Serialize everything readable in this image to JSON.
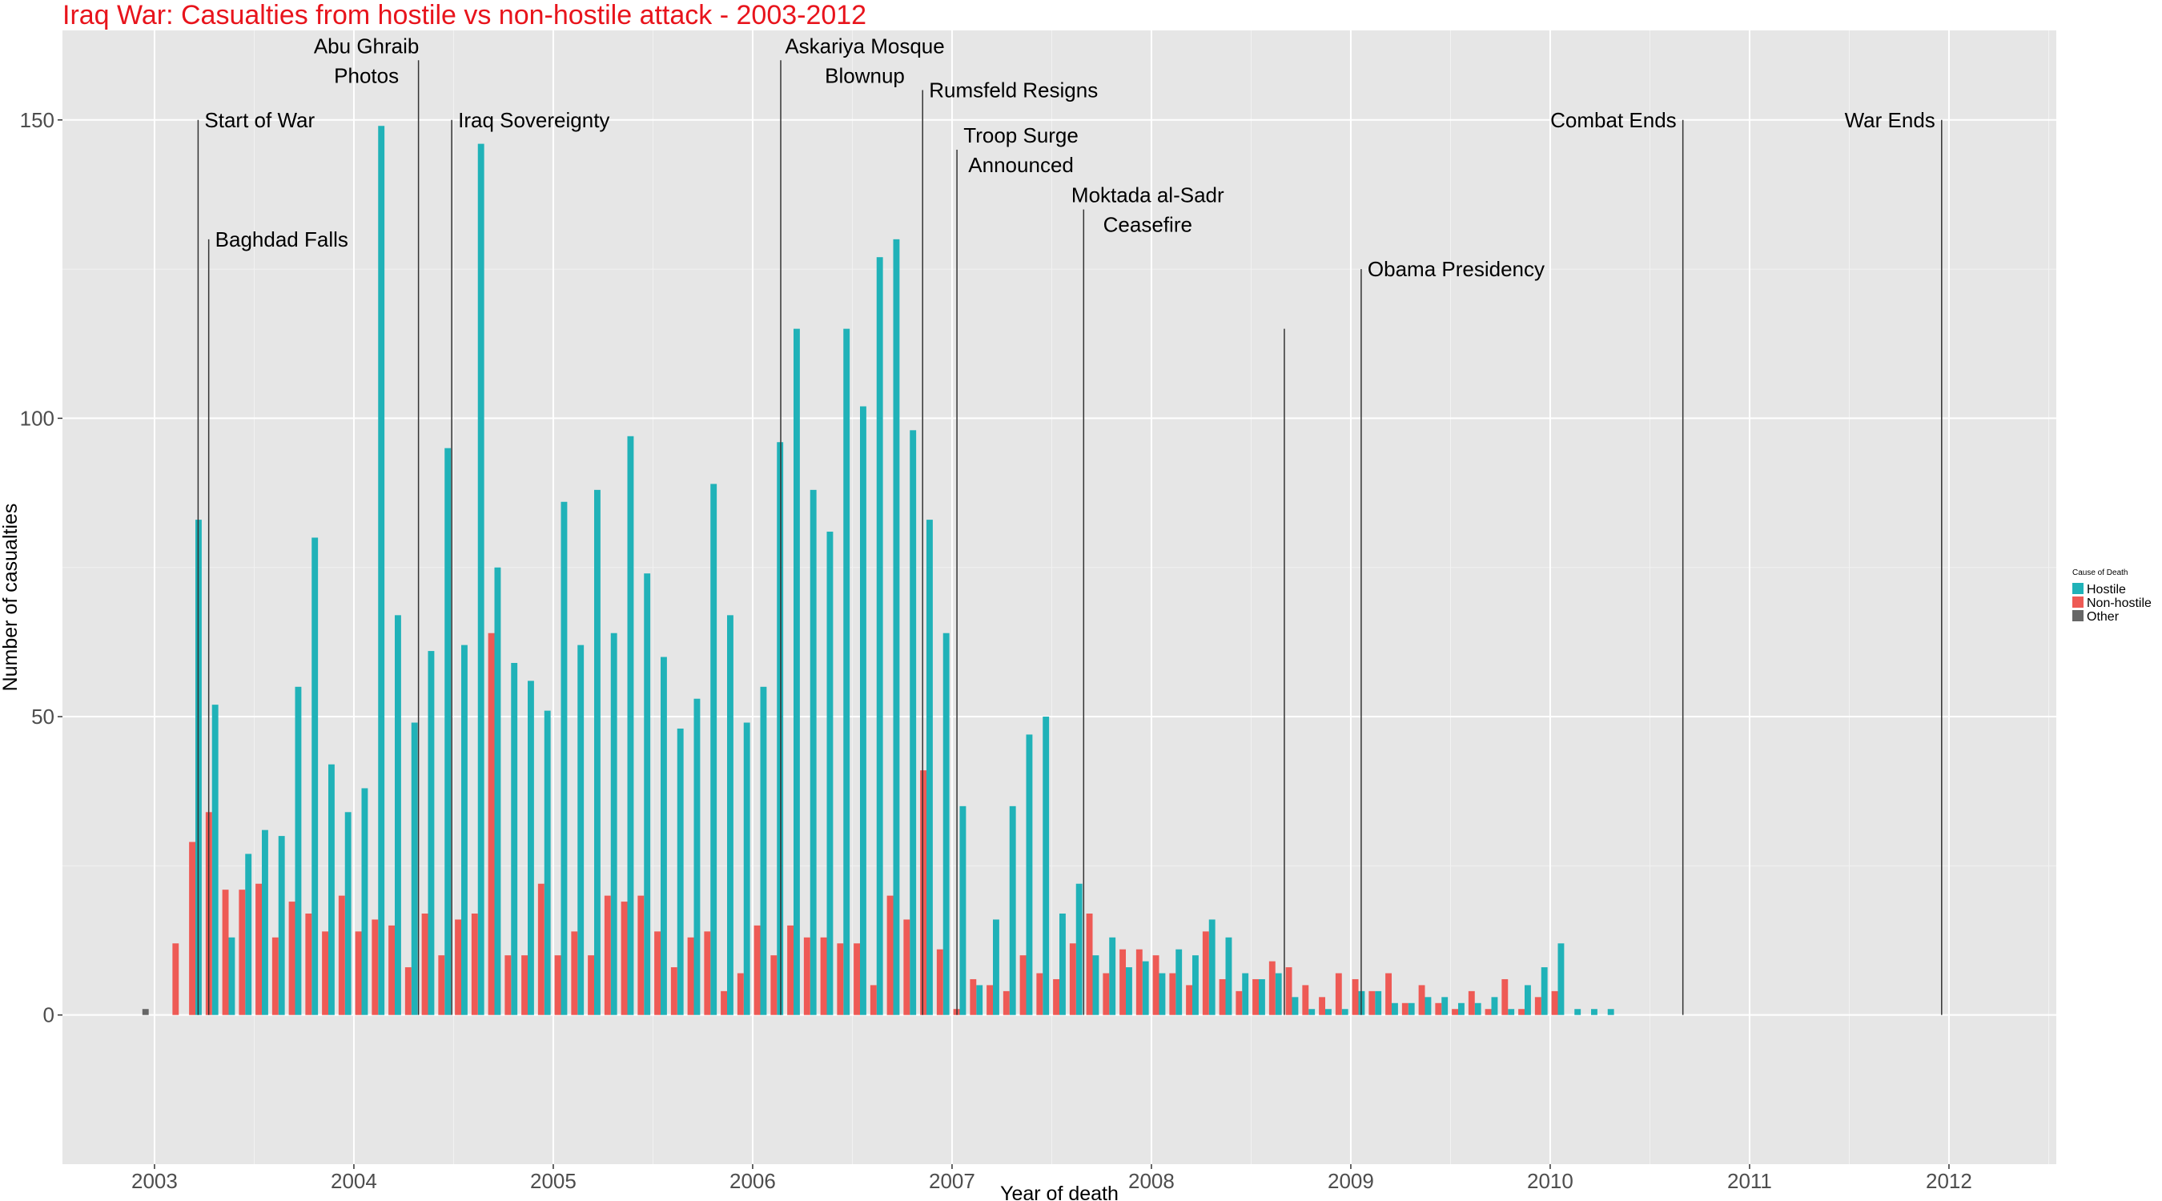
{
  "chart_data": {
    "type": "bar",
    "title": "Iraq War: Casualties from hostile vs non-hostile attack - 2003-2012",
    "xlabel": "Year of death",
    "ylabel": "Number of casualties",
    "xlim": [
      "2002-07-15",
      "2012-07-15"
    ],
    "ylim": [
      -25,
      165
    ],
    "x_ticks": [
      "2003",
      "2004",
      "2005",
      "2006",
      "2007",
      "2008",
      "2009",
      "2010",
      "2011",
      "2012"
    ],
    "y_ticks": [
      0,
      50,
      100,
      150
    ],
    "grid": true,
    "legend": {
      "title": "Cause of Death",
      "position": "right"
    },
    "series": [
      {
        "name": "Hostile",
        "color": "#20b2b8",
        "points": [
          [
            "2003-03",
            83
          ],
          [
            "2003-04",
            52
          ],
          [
            "2003-05",
            13
          ],
          [
            "2003-06",
            27
          ],
          [
            "2003-07",
            31
          ],
          [
            "2003-08",
            30
          ],
          [
            "2003-09",
            55
          ],
          [
            "2003-10",
            80
          ],
          [
            "2003-11",
            42
          ],
          [
            "2003-12",
            34
          ],
          [
            "2004-01",
            38
          ],
          [
            "2004-02",
            149
          ],
          [
            "2004-03",
            67
          ],
          [
            "2004-04",
            49
          ],
          [
            "2004-05",
            61
          ],
          [
            "2004-06",
            95
          ],
          [
            "2004-07",
            62
          ],
          [
            "2004-08",
            146
          ],
          [
            "2004-09",
            75
          ],
          [
            "2004-10",
            59
          ],
          [
            "2004-11",
            56
          ],
          [
            "2004-12",
            51
          ],
          [
            "2005-01",
            86
          ],
          [
            "2005-02",
            62
          ],
          [
            "2005-03",
            88
          ],
          [
            "2005-04",
            64
          ],
          [
            "2005-05",
            97
          ],
          [
            "2005-06",
            74
          ],
          [
            "2005-07",
            60
          ],
          [
            "2005-08",
            48
          ],
          [
            "2005-09",
            53
          ],
          [
            "2005-10",
            89
          ],
          [
            "2005-11",
            67
          ],
          [
            "2005-12",
            49
          ],
          [
            "2006-01",
            55
          ],
          [
            "2006-02",
            96
          ],
          [
            "2006-03",
            115
          ],
          [
            "2006-04",
            88
          ],
          [
            "2006-05",
            81
          ],
          [
            "2006-06",
            115
          ],
          [
            "2006-07",
            102
          ],
          [
            "2006-08",
            127
          ],
          [
            "2006-09",
            130
          ],
          [
            "2006-10",
            98
          ],
          [
            "2006-11",
            83
          ],
          [
            "2006-12",
            64
          ],
          [
            "2007-01",
            35
          ],
          [
            "2007-02",
            5
          ],
          [
            "2007-03",
            16
          ],
          [
            "2007-04",
            35
          ],
          [
            "2007-05",
            47
          ],
          [
            "2007-06",
            50
          ],
          [
            "2007-07",
            17
          ],
          [
            "2007-08",
            22
          ],
          [
            "2007-09",
            10
          ],
          [
            "2007-10",
            13
          ],
          [
            "2007-11",
            8
          ],
          [
            "2007-12",
            9
          ],
          [
            "2008-01",
            7
          ],
          [
            "2008-02",
            11
          ],
          [
            "2008-03",
            10
          ],
          [
            "2008-04",
            16
          ],
          [
            "2008-05",
            13
          ],
          [
            "2008-06",
            7
          ],
          [
            "2008-07",
            6
          ],
          [
            "2008-08",
            7
          ],
          [
            "2008-09",
            3
          ],
          [
            "2008-10",
            1
          ],
          [
            "2008-11",
            1
          ],
          [
            "2008-12",
            1
          ],
          [
            "2009-01",
            4
          ],
          [
            "2009-02",
            4
          ],
          [
            "2009-03",
            2
          ],
          [
            "2009-04",
            2
          ],
          [
            "2009-05",
            3
          ],
          [
            "2009-06",
            3
          ],
          [
            "2009-07",
            2
          ],
          [
            "2009-08",
            2
          ],
          [
            "2009-09",
            3
          ],
          [
            "2009-10",
            1
          ],
          [
            "2009-11",
            5
          ],
          [
            "2009-12",
            8
          ],
          [
            "2010-01",
            12
          ],
          [
            "2010-02",
            1
          ],
          [
            "2010-03",
            1
          ],
          [
            "2010-04",
            1
          ]
        ]
      },
      {
        "name": "Non-hostile",
        "color": "#ee5a55",
        "points": [
          [
            "2003-02",
            12
          ],
          [
            "2003-03",
            29
          ],
          [
            "2003-04",
            34
          ],
          [
            "2003-05",
            21
          ],
          [
            "2003-06",
            21
          ],
          [
            "2003-07",
            22
          ],
          [
            "2003-08",
            13
          ],
          [
            "2003-09",
            19
          ],
          [
            "2003-10",
            17
          ],
          [
            "2003-11",
            14
          ],
          [
            "2003-12",
            20
          ],
          [
            "2004-01",
            14
          ],
          [
            "2004-02",
            16
          ],
          [
            "2004-03",
            15
          ],
          [
            "2004-04",
            8
          ],
          [
            "2004-05",
            17
          ],
          [
            "2004-06",
            10
          ],
          [
            "2004-07",
            16
          ],
          [
            "2004-08",
            17
          ],
          [
            "2004-09",
            64
          ],
          [
            "2004-10",
            10
          ],
          [
            "2004-11",
            10
          ],
          [
            "2004-12",
            22
          ],
          [
            "2005-01",
            10
          ],
          [
            "2005-02",
            14
          ],
          [
            "2005-03",
            10
          ],
          [
            "2005-04",
            20
          ],
          [
            "2005-05",
            19
          ],
          [
            "2005-06",
            20
          ],
          [
            "2005-07",
            14
          ],
          [
            "2005-08",
            8
          ],
          [
            "2005-09",
            13
          ],
          [
            "2005-10",
            14
          ],
          [
            "2005-11",
            4
          ],
          [
            "2005-12",
            7
          ],
          [
            "2006-01",
            15
          ],
          [
            "2006-02",
            10
          ],
          [
            "2006-03",
            15
          ],
          [
            "2006-04",
            13
          ],
          [
            "2006-05",
            13
          ],
          [
            "2006-06",
            12
          ],
          [
            "2006-07",
            12
          ],
          [
            "2006-08",
            5
          ],
          [
            "2006-09",
            20
          ],
          [
            "2006-10",
            16
          ],
          [
            "2006-11",
            41
          ],
          [
            "2006-12",
            11
          ],
          [
            "2007-01",
            1
          ],
          [
            "2007-02",
            6
          ],
          [
            "2007-03",
            5
          ],
          [
            "2007-04",
            4
          ],
          [
            "2007-05",
            10
          ],
          [
            "2007-06",
            7
          ],
          [
            "2007-07",
            6
          ],
          [
            "2007-08",
            12
          ],
          [
            "2007-09",
            17
          ],
          [
            "2007-10",
            7
          ],
          [
            "2007-11",
            11
          ],
          [
            "2007-12",
            11
          ],
          [
            "2008-01",
            10
          ],
          [
            "2008-02",
            7
          ],
          [
            "2008-03",
            5
          ],
          [
            "2008-04",
            14
          ],
          [
            "2008-05",
            6
          ],
          [
            "2008-06",
            4
          ],
          [
            "2008-07",
            6
          ],
          [
            "2008-08",
            9
          ],
          [
            "2008-09",
            8
          ],
          [
            "2008-10",
            5
          ],
          [
            "2008-11",
            3
          ],
          [
            "2008-12",
            7
          ],
          [
            "2009-01",
            6
          ],
          [
            "2009-02",
            4
          ],
          [
            "2009-03",
            7
          ],
          [
            "2009-04",
            2
          ],
          [
            "2009-05",
            5
          ],
          [
            "2009-06",
            2
          ],
          [
            "2009-07",
            1
          ],
          [
            "2009-08",
            4
          ],
          [
            "2009-09",
            1
          ],
          [
            "2009-10",
            6
          ],
          [
            "2009-11",
            1
          ],
          [
            "2009-12",
            3
          ],
          [
            "2010-01",
            4
          ]
        ]
      },
      {
        "name": "Other",
        "color": "#666666",
        "points": [
          [
            "2002-12",
            1
          ]
        ]
      }
    ],
    "annotations": [
      {
        "text": [
          "Start of War"
        ],
        "date": "2003-03-20",
        "line_top": 150
      },
      {
        "text": [
          "Baghdad Falls"
        ],
        "date": "2003-04-09",
        "line_top": 130
      },
      {
        "text": [
          "Abu Ghraib",
          "Photos"
        ],
        "date": "2004-04-28",
        "line_top": 160
      },
      {
        "text": [
          "Iraq Sovereignty"
        ],
        "date": "2004-06-28",
        "line_top": 150
      },
      {
        "text": [
          "Askariya Mosque",
          "Blownup"
        ],
        "date": "2006-02-22",
        "line_top": 160
      },
      {
        "text": [
          "Rumsfeld Resigns"
        ],
        "date": "2006-11-08",
        "line_top": 155
      },
      {
        "text": [
          "Troop Surge",
          "Announced"
        ],
        "date": "2007-01-10",
        "line_top": 145
      },
      {
        "text": [
          "Moktada al-Sadr",
          "Ceasefire"
        ],
        "date": "2007-08-29",
        "line_top": 135
      },
      {
        "text": [
          "Obama Presidency"
        ],
        "date": "2009-01-20",
        "line_top": 125
      },
      {
        "text": [],
        "date": "2008-09-01",
        "line_top": 115
      },
      {
        "text": [
          "Combat Ends"
        ],
        "date": "2010-08-31",
        "line_top": 150
      },
      {
        "text": [
          "War Ends"
        ],
        "date": "2011-12-18",
        "line_top": 150
      }
    ]
  }
}
